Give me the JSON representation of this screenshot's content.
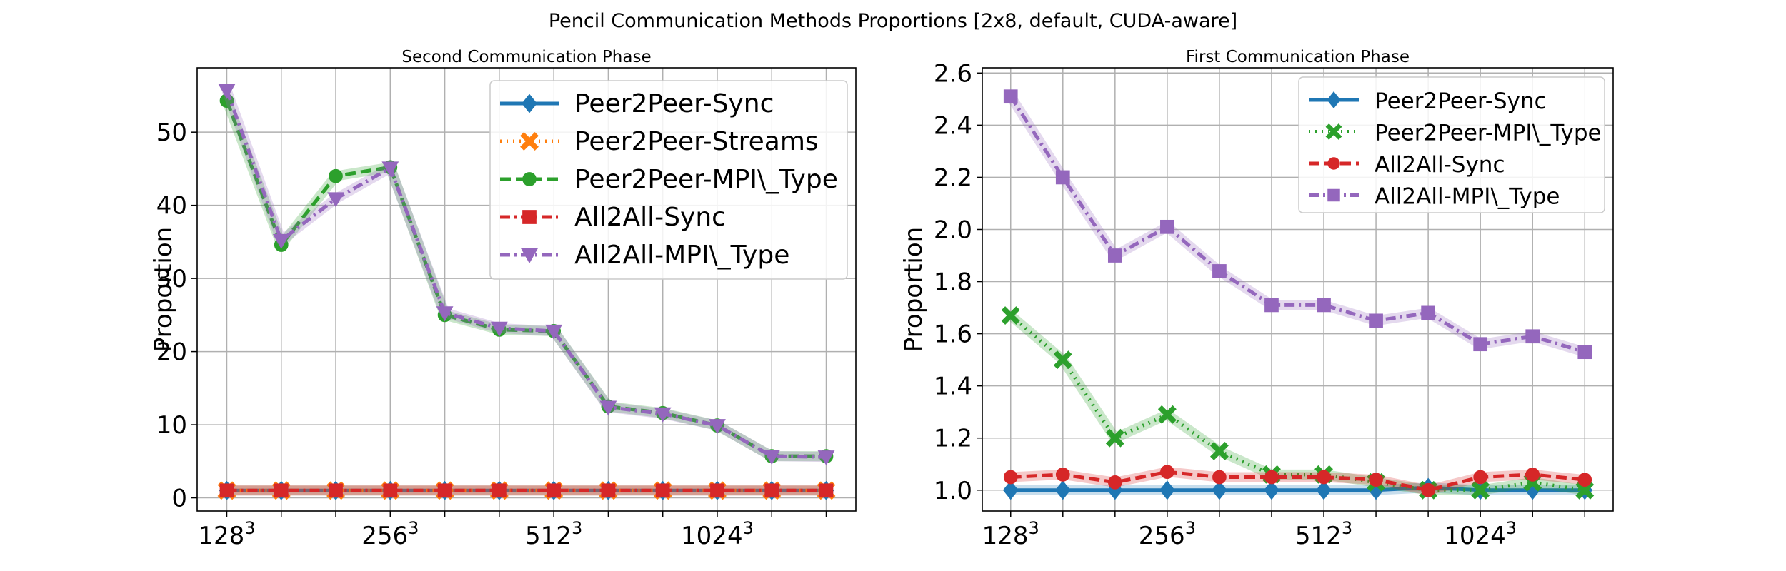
{
  "suptitle": "Pencil Communication Methods Proportions [2x8, default, CUDA-aware]",
  "colors": {
    "Peer2Peer-Sync": "#1f77b4",
    "Peer2Peer-Streams": "#ff7f0e",
    "Peer2Peer-MPI\\_Type": "#2ca02c",
    "All2All-Sync": "#d62728",
    "All2All-MPI\\_Type": "#9467bd"
  },
  "chart_data": [
    {
      "type": "line",
      "title": "Second Communication Phase",
      "ylabel": "Proportion",
      "xlabel": "",
      "x_ticks": [
        {
          "label": "128",
          "sup": "3",
          "index": 0
        },
        {
          "label": "256",
          "sup": "3",
          "index": 3
        },
        {
          "label": "512",
          "sup": "3",
          "index": 6
        },
        {
          "label": "1024",
          "sup": "3",
          "index": 9
        }
      ],
      "x_count": 12,
      "y_ticks": [
        0,
        10,
        20,
        30,
        40,
        50
      ],
      "ylim": [
        -1.8,
        58.8
      ],
      "grid": true,
      "legend_location": "top-right",
      "series": [
        {
          "name": "Peer2Peer-Sync",
          "style": "solid",
          "marker": "diamond",
          "values": [
            1,
            1,
            1,
            1,
            1,
            1,
            1,
            1,
            1,
            1,
            1,
            1
          ]
        },
        {
          "name": "Peer2Peer-Streams",
          "style": "dotted",
          "marker": "x",
          "values": [
            1,
            1,
            1,
            1,
            1,
            1,
            1,
            1,
            1,
            1,
            1,
            1
          ]
        },
        {
          "name": "Peer2Peer-MPI\\_Type",
          "style": "dashed",
          "marker": "circle",
          "values": [
            54.3,
            34.6,
            44.0,
            45.2,
            25.0,
            23.0,
            22.8,
            12.5,
            11.6,
            9.9,
            5.7,
            5.7
          ]
        },
        {
          "name": "All2All-Sync",
          "style": "dashdot",
          "marker": "square",
          "values": [
            1,
            1,
            1,
            1,
            1,
            1,
            1,
            1,
            1,
            1,
            1,
            1
          ]
        },
        {
          "name": "All2All-MPI\\_Type",
          "style": "dashdot",
          "marker": "triangle-down",
          "values": [
            55.7,
            35.2,
            40.9,
            45.1,
            25.3,
            23.2,
            22.8,
            12.4,
            11.5,
            9.9,
            5.7,
            5.6
          ]
        }
      ]
    },
    {
      "type": "line",
      "title": "First Communication Phase",
      "ylabel": "Proportion",
      "xlabel": "",
      "x_ticks": [
        {
          "label": "128",
          "sup": "3",
          "index": 0
        },
        {
          "label": "256",
          "sup": "3",
          "index": 3
        },
        {
          "label": "512",
          "sup": "3",
          "index": 6
        },
        {
          "label": "1024",
          "sup": "3",
          "index": 9
        }
      ],
      "x_count": 12,
      "y_ticks": [
        "1.0",
        "1.2",
        "1.4",
        "1.6",
        "1.8",
        "2.0",
        "2.2",
        "2.4",
        "2.6"
      ],
      "ylim": [
        0.92,
        2.62
      ],
      "grid": true,
      "legend_location": "top-right",
      "series": [
        {
          "name": "Peer2Peer-Sync",
          "style": "solid",
          "marker": "diamond",
          "values": [
            1,
            1,
            1,
            1,
            1,
            1,
            1,
            1,
            1.01,
            1,
            1,
            1
          ]
        },
        {
          "name": "Peer2Peer-MPI\\_Type",
          "style": "dotted",
          "marker": "x",
          "values": [
            1.67,
            1.5,
            1.2,
            1.29,
            1.15,
            1.06,
            1.06,
            1.03,
            1.0,
            1.0,
            1.03,
            1.0
          ]
        },
        {
          "name": "All2All-Sync",
          "style": "dashed",
          "marker": "circle",
          "values": [
            1.05,
            1.06,
            1.03,
            1.07,
            1.05,
            1.05,
            1.05,
            1.04,
            1.0,
            1.05,
            1.06,
            1.04
          ]
        },
        {
          "name": "All2All-MPI\\_Type",
          "style": "dashdot",
          "marker": "square",
          "values": [
            2.51,
            2.2,
            1.9,
            2.01,
            1.84,
            1.71,
            1.71,
            1.65,
            1.68,
            1.56,
            1.59,
            1.53
          ]
        }
      ]
    }
  ]
}
